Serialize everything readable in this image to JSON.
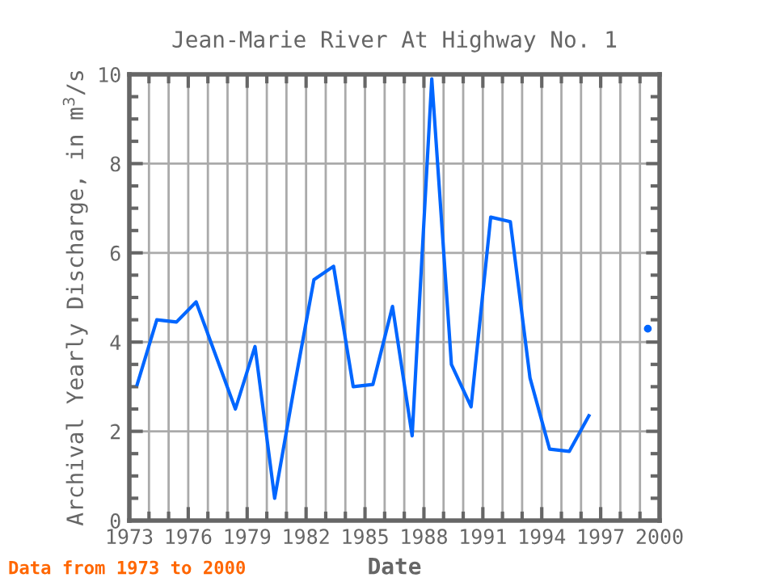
{
  "chart_data": {
    "type": "line",
    "title": "Jean-Marie River At Highway No. 1",
    "xlabel": "Date",
    "ylabel": "Archival Yearly Discharge, in m$^{3}$/s",
    "x": [
      1973.4,
      1974.4,
      1975.4,
      1976.4,
      1977.4,
      1978.4,
      1979.4,
      1980.4,
      1981.4,
      1982.4,
      1983.4,
      1984.4,
      1985.4,
      1986.4,
      1987.4,
      1988.4,
      1989.4,
      1990.4,
      1991.4,
      1992.4,
      1993.4,
      1994.4,
      1995.4,
      1996.4,
      1997.4,
      1998.4,
      1999.4
    ],
    "series": [
      {
        "color": "#0066ff",
        "values": [
          3.05,
          4.5,
          4.45,
          4.9,
          3.7,
          2.5,
          3.9,
          0.5,
          3.0,
          5.4,
          5.7,
          3.0,
          3.05,
          4.8,
          1.9,
          9.9,
          3.5,
          2.55,
          6.8,
          6.7,
          3.2,
          1.6,
          1.55,
          2.35,
          null,
          null,
          4.3
        ]
      }
    ],
    "xlim": [
      1973,
      2000
    ],
    "xticks": [
      1973,
      1976,
      1979,
      1982,
      1985,
      1988,
      1991,
      1994,
      1997,
      2000
    ],
    "ylim": [
      0,
      10
    ],
    "yticks": [
      0,
      2,
      4,
      6,
      8,
      10
    ],
    "grid": true,
    "marker": "none",
    "line_style": "solid",
    "annotations": [
      "Data from 1973 to 2000"
    ]
  }
}
